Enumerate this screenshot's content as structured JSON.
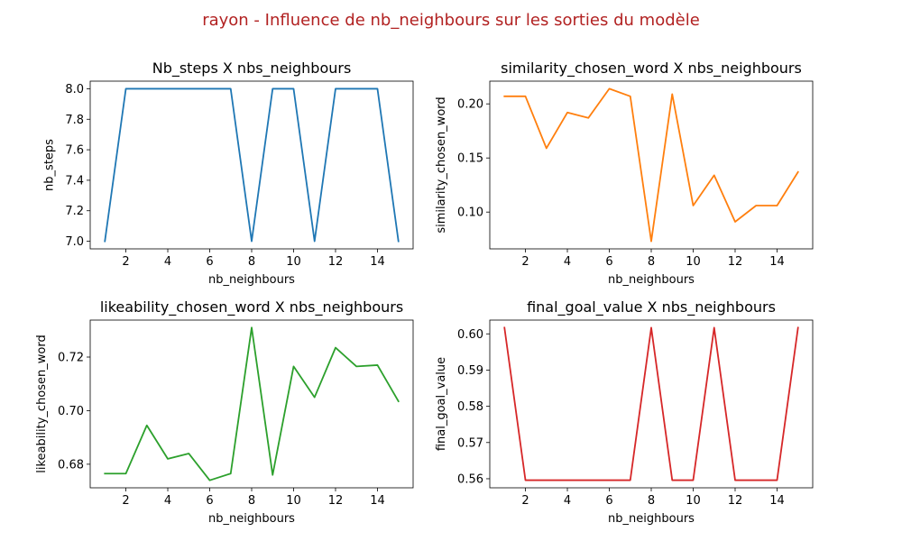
{
  "figure": {
    "title": "rayon - Influence de nb_neighbours sur les sorties du modèle",
    "title_color": "#b22222"
  },
  "chart_data": [
    {
      "type": "line",
      "title": "Nb_steps X nbs_neighbours",
      "xlabel": "nb_neighbours",
      "ylabel": "nb_steps",
      "color": "#1f77b4",
      "x": [
        1,
        2,
        3,
        4,
        5,
        6,
        7,
        8,
        9,
        10,
        11,
        12,
        13,
        14,
        15
      ],
      "y": [
        7.0,
        8.0,
        8.0,
        8.0,
        8.0,
        8.0,
        8.0,
        7.0,
        8.0,
        8.0,
        7.0,
        8.0,
        8.0,
        8.0,
        7.0
      ],
      "xlim": [
        0.3,
        15.7
      ],
      "ylim": [
        6.95,
        8.05
      ],
      "xticks": [
        2,
        4,
        6,
        8,
        10,
        12,
        14
      ],
      "yticks": [
        7.0,
        7.2,
        7.4,
        7.6,
        7.8,
        8.0
      ],
      "ytick_labels": [
        "7.0",
        "7.2",
        "7.4",
        "7.6",
        "7.8",
        "8.0"
      ],
      "grid": false
    },
    {
      "type": "line",
      "title": "similarity_chosen_word X nbs_neighbours",
      "xlabel": "nb_neighbours",
      "ylabel": "similarity_chosen_word",
      "color": "#ff7f0e",
      "x": [
        1,
        2,
        3,
        4,
        5,
        6,
        7,
        8,
        9,
        10,
        11,
        12,
        13,
        14,
        15
      ],
      "y": [
        0.207,
        0.207,
        0.159,
        0.192,
        0.187,
        0.214,
        0.207,
        0.073,
        0.209,
        0.106,
        0.134,
        0.091,
        0.106,
        0.106,
        0.137
      ],
      "xlim": [
        0.3,
        15.7
      ],
      "ylim": [
        0.066,
        0.221
      ],
      "xticks": [
        2,
        4,
        6,
        8,
        10,
        12,
        14
      ],
      "yticks": [
        0.1,
        0.15,
        0.2
      ],
      "ytick_labels": [
        "0.10",
        "0.15",
        "0.20"
      ],
      "grid": false
    },
    {
      "type": "line",
      "title": "likeability_chosen_word X nbs_neighbours",
      "xlabel": "nb_neighbours",
      "ylabel": "likeability_chosen_word",
      "color": "#2ca02c",
      "x": [
        1,
        2,
        3,
        4,
        5,
        6,
        7,
        8,
        9,
        10,
        11,
        12,
        13,
        14,
        15
      ],
      "y": [
        0.6765,
        0.6765,
        0.6945,
        0.682,
        0.684,
        0.674,
        0.6765,
        0.731,
        0.676,
        0.7165,
        0.705,
        0.7235,
        0.7165,
        0.717,
        0.7035
      ],
      "xlim": [
        0.3,
        15.7
      ],
      "ylim": [
        0.6712,
        0.7338
      ],
      "xticks": [
        2,
        4,
        6,
        8,
        10,
        12,
        14
      ],
      "yticks": [
        0.68,
        0.7,
        0.72
      ],
      "ytick_labels": [
        "0.68",
        "0.70",
        "0.72"
      ],
      "grid": false
    },
    {
      "type": "line",
      "title": "final_goal_value X nbs_neighbours",
      "xlabel": "nb_neighbours",
      "ylabel": "final_goal_value",
      "color": "#d62728",
      "x": [
        1,
        2,
        3,
        4,
        5,
        6,
        7,
        8,
        9,
        10,
        11,
        12,
        13,
        14,
        15
      ],
      "y": [
        0.6017,
        0.5596,
        0.5596,
        0.5596,
        0.5596,
        0.5596,
        0.5596,
        0.6017,
        0.5596,
        0.5596,
        0.6017,
        0.5596,
        0.5596,
        0.5596,
        0.6017
      ],
      "xlim": [
        0.3,
        15.7
      ],
      "ylim": [
        0.5575,
        0.6038
      ],
      "xticks": [
        2,
        4,
        6,
        8,
        10,
        12,
        14
      ],
      "yticks": [
        0.56,
        0.57,
        0.58,
        0.59,
        0.6
      ],
      "ytick_labels": [
        "0.56",
        "0.57",
        "0.58",
        "0.59",
        "0.60"
      ],
      "grid": false
    }
  ]
}
